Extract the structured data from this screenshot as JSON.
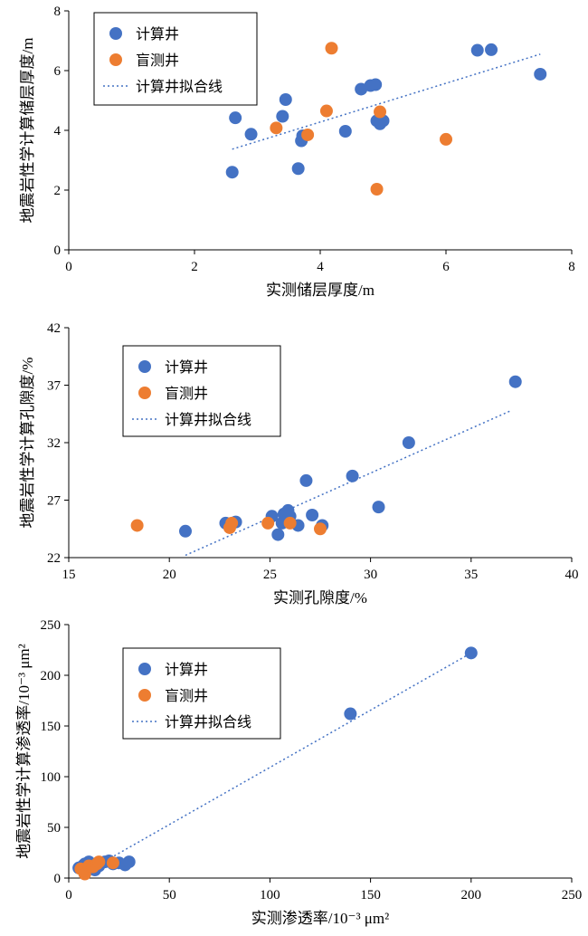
{
  "chart_data": [
    {
      "type": "scatter",
      "title": "",
      "xlabel": "实测储层厚度/m",
      "ylabel": "地震岩性学计算储层厚度/m",
      "xlim": [
        0,
        8
      ],
      "ylim": [
        0,
        8
      ],
      "xticks": [
        "0",
        "2",
        "4",
        "6",
        "8"
      ],
      "yticks": [
        "0",
        "2",
        "4",
        "6",
        "8"
      ],
      "legend_position": "top-left",
      "series": [
        {
          "name": "计算井",
          "color": "#4472C4",
          "points": [
            [
              2.6,
              2.6
            ],
            [
              2.65,
              4.42
            ],
            [
              2.9,
              3.87
            ],
            [
              3.4,
              4.47
            ],
            [
              3.45,
              5.03
            ],
            [
              3.65,
              2.72
            ],
            [
              3.7,
              3.65
            ],
            [
              3.72,
              3.82
            ],
            [
              4.4,
              3.97
            ],
            [
              4.65,
              5.38
            ],
            [
              4.8,
              5.5
            ],
            [
              4.88,
              5.53
            ],
            [
              4.9,
              4.32
            ],
            [
              4.95,
              4.22
            ],
            [
              5.0,
              4.32
            ],
            [
              6.5,
              6.68
            ],
            [
              6.72,
              6.7
            ],
            [
              7.5,
              5.88
            ]
          ]
        },
        {
          "name": "盲测井",
          "color": "#ED7D31",
          "points": [
            [
              3.3,
              4.08
            ],
            [
              3.8,
              3.85
            ],
            [
              4.1,
              4.65
            ],
            [
              4.18,
              6.75
            ],
            [
              4.9,
              2.03
            ],
            [
              4.95,
              4.62
            ],
            [
              6.0,
              3.7
            ]
          ]
        }
      ],
      "fit_line": {
        "name": "计算井拟合线",
        "color": "#4472C4",
        "points": [
          [
            2.6,
            3.37
          ],
          [
            7.5,
            6.55
          ]
        ]
      }
    },
    {
      "type": "scatter",
      "title": "",
      "xlabel": "实测孔隙度/%",
      "ylabel": "地震岩性学计算孔隙度/%",
      "xlim": [
        15,
        40
      ],
      "ylim": [
        22,
        42
      ],
      "xticks": [
        "15",
        "20",
        "25",
        "30",
        "35",
        "40"
      ],
      "yticks": [
        "22",
        "27",
        "32",
        "37",
        "42"
      ],
      "legend_position": "top-left",
      "series": [
        {
          "name": "计算井",
          "color": "#4472C4",
          "points": [
            [
              20.8,
              24.3
            ],
            [
              22.8,
              25.0
            ],
            [
              23.3,
              25.1
            ],
            [
              25.1,
              25.6
            ],
            [
              25.4,
              24.0
            ],
            [
              25.6,
              25.0
            ],
            [
              25.7,
              25.8
            ],
            [
              25.9,
              26.1
            ],
            [
              26.0,
              25.6
            ],
            [
              26.4,
              24.8
            ],
            [
              26.8,
              28.7
            ],
            [
              27.1,
              25.7
            ],
            [
              27.6,
              24.8
            ],
            [
              29.1,
              29.1
            ],
            [
              30.4,
              26.4
            ],
            [
              31.9,
              32.0
            ],
            [
              37.2,
              37.3
            ]
          ]
        },
        {
          "name": "盲测井",
          "color": "#ED7D31",
          "points": [
            [
              18.4,
              24.8
            ],
            [
              23.0,
              24.6
            ],
            [
              23.1,
              25.0
            ],
            [
              24.9,
              25.0
            ],
            [
              26.0,
              25.0
            ],
            [
              27.5,
              24.5
            ]
          ]
        }
      ],
      "fit_line": {
        "name": "计算井拟合线",
        "color": "#4472C4",
        "points": [
          [
            20.8,
            22.2
          ],
          [
            37.0,
            34.8
          ]
        ]
      }
    },
    {
      "type": "scatter",
      "title": "",
      "xlabel": "实测渗透率/10⁻³ μm²",
      "ylabel": "地震岩性学计算渗透率/10⁻³ μm²",
      "xlim": [
        0,
        250
      ],
      "ylim": [
        0,
        250
      ],
      "xticks": [
        "0",
        "50",
        "100",
        "150",
        "200",
        "250"
      ],
      "yticks": [
        "0",
        "50",
        "100",
        "150",
        "200",
        "250"
      ],
      "legend_position": "top-left",
      "series": [
        {
          "name": "计算井",
          "color": "#4472C4",
          "points": [
            [
              5,
              10
            ],
            [
              7,
              12
            ],
            [
              8,
              14
            ],
            [
              10,
              16
            ],
            [
              12,
              10
            ],
            [
              13,
              8
            ],
            [
              15,
              12
            ],
            [
              18,
              16
            ],
            [
              20,
              17
            ],
            [
              22,
              14
            ],
            [
              25,
              15
            ],
            [
              28,
              13
            ],
            [
              30,
              16
            ],
            [
              140,
              162
            ],
            [
              200,
              222
            ]
          ]
        },
        {
          "name": "盲测井",
          "color": "#ED7D31",
          "points": [
            [
              6,
              9
            ],
            [
              8,
              4
            ],
            [
              10,
              12
            ],
            [
              12,
              11
            ],
            [
              14,
              14
            ],
            [
              15,
              16
            ],
            [
              22,
              15
            ]
          ]
        }
      ],
      "fit_line": {
        "name": "计算井拟合线",
        "color": "#4472C4",
        "points": [
          [
            5,
            2
          ],
          [
            200,
            222
          ]
        ]
      }
    }
  ]
}
